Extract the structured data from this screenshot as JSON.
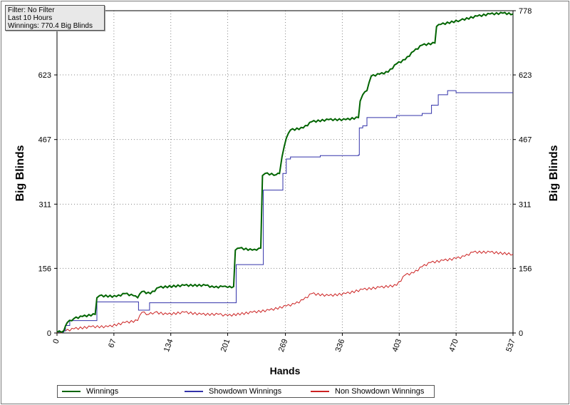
{
  "info_box": {
    "filter": "Filter: No Filter",
    "period": "Last  10 Hours",
    "winnings": "Winnings: 770.4 Big Blinds"
  },
  "legend": {
    "items": [
      {
        "label": "Winnings",
        "color": "#006400"
      },
      {
        "label": "Showdown Winnings",
        "color": "#3333aa"
      },
      {
        "label": "Non Showdown Winnings",
        "color": "#cc2222"
      }
    ]
  },
  "chart_data": {
    "type": "line",
    "xlabel": "Hands",
    "ylabel_left": "Big Blinds",
    "ylabel_right": "Big Blinds",
    "xlim": [
      0,
      537
    ],
    "ylim": [
      0,
      778
    ],
    "x_ticks": [
      "0",
      "67",
      "134",
      "201",
      "269",
      "336",
      "403",
      "470",
      "537"
    ],
    "y_ticks": [
      "0",
      "156",
      "311",
      "467",
      "623",
      "778"
    ],
    "grid": true,
    "legend_position": "bottom",
    "series": [
      {
        "name": "Winnings",
        "color": "#006400",
        "points": [
          [
            0,
            2
          ],
          [
            8,
            5
          ],
          [
            12,
            25
          ],
          [
            20,
            35
          ],
          [
            30,
            40
          ],
          [
            45,
            45
          ],
          [
            47,
            85
          ],
          [
            50,
            90
          ],
          [
            70,
            88
          ],
          [
            80,
            95
          ],
          [
            90,
            90
          ],
          [
            95,
            85
          ],
          [
            100,
            100
          ],
          [
            110,
            95
          ],
          [
            120,
            110
          ],
          [
            150,
            115
          ],
          [
            175,
            115
          ],
          [
            185,
            110
          ],
          [
            195,
            112
          ],
          [
            201,
            110
          ],
          [
            208,
            112
          ],
          [
            210,
            200
          ],
          [
            215,
            205
          ],
          [
            230,
            200
          ],
          [
            235,
            200
          ],
          [
            240,
            205
          ],
          [
            242,
            380
          ],
          [
            245,
            385
          ],
          [
            258,
            382
          ],
          [
            262,
            385
          ],
          [
            265,
            425
          ],
          [
            270,
            470
          ],
          [
            275,
            490
          ],
          [
            290,
            495
          ],
          [
            300,
            510
          ],
          [
            320,
            515
          ],
          [
            340,
            515
          ],
          [
            355,
            520
          ],
          [
            357,
            560
          ],
          [
            360,
            575
          ],
          [
            365,
            585
          ],
          [
            370,
            620
          ],
          [
            380,
            625
          ],
          [
            390,
            630
          ],
          [
            400,
            650
          ],
          [
            410,
            660
          ],
          [
            420,
            680
          ],
          [
            430,
            695
          ],
          [
            445,
            700
          ],
          [
            447,
            740
          ],
          [
            452,
            745
          ],
          [
            475,
            755
          ],
          [
            495,
            765
          ],
          [
            510,
            770
          ],
          [
            525,
            772
          ],
          [
            537,
            770
          ]
        ]
      },
      {
        "name": "Showdown Winnings",
        "color": "#3333aa",
        "points": [
          [
            0,
            2
          ],
          [
            8,
            5
          ],
          [
            10,
            18
          ],
          [
            15,
            30
          ],
          [
            46,
            30
          ],
          [
            47,
            75
          ],
          [
            95,
            75
          ],
          [
            96,
            55
          ],
          [
            108,
            55
          ],
          [
            109,
            73
          ],
          [
            201,
            73
          ],
          [
            210,
            73
          ],
          [
            211,
            165
          ],
          [
            242,
            165
          ],
          [
            243,
            345
          ],
          [
            265,
            345
          ],
          [
            266,
            385
          ],
          [
            270,
            420
          ],
          [
            275,
            425
          ],
          [
            310,
            428
          ],
          [
            355,
            430
          ],
          [
            356,
            495
          ],
          [
            360,
            500
          ],
          [
            365,
            520
          ],
          [
            400,
            525
          ],
          [
            430,
            530
          ],
          [
            440,
            530
          ],
          [
            441,
            550
          ],
          [
            448,
            550
          ],
          [
            449,
            575
          ],
          [
            460,
            585
          ],
          [
            470,
            580
          ],
          [
            537,
            580
          ]
        ]
      },
      {
        "name": "Non Showdown Winnings",
        "color": "#cc2222",
        "points": [
          [
            0,
            0
          ],
          [
            10,
            5
          ],
          [
            20,
            10
          ],
          [
            40,
            15
          ],
          [
            60,
            15
          ],
          [
            80,
            25
          ],
          [
            95,
            30
          ],
          [
            100,
            50
          ],
          [
            108,
            45
          ],
          [
            115,
            50
          ],
          [
            130,
            45
          ],
          [
            150,
            50
          ],
          [
            170,
            45
          ],
          [
            190,
            45
          ],
          [
            201,
            42
          ],
          [
            230,
            50
          ],
          [
            250,
            55
          ],
          [
            270,
            65
          ],
          [
            280,
            70
          ],
          [
            290,
            80
          ],
          [
            300,
            95
          ],
          [
            320,
            90
          ],
          [
            340,
            95
          ],
          [
            360,
            105
          ],
          [
            380,
            110
          ],
          [
            400,
            115
          ],
          [
            410,
            140
          ],
          [
            420,
            145
          ],
          [
            430,
            160
          ],
          [
            440,
            170
          ],
          [
            455,
            175
          ],
          [
            470,
            180
          ],
          [
            480,
            185
          ],
          [
            490,
            195
          ],
          [
            510,
            195
          ],
          [
            537,
            190
          ]
        ]
      }
    ]
  }
}
